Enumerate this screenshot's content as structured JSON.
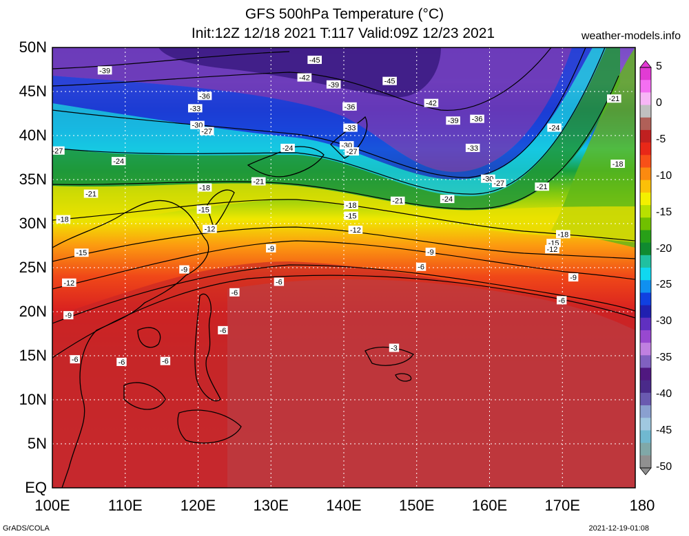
{
  "title_line1": "GFS 500hPa Temperature (°C)",
  "title_line2": "Init:12Z 12/18 2021 T:117 Valid:09Z 12/23 2021",
  "site": "weather-models.info",
  "footer_left": "GrADS/COLA",
  "footer_right": "2021-12-19-01:08",
  "lat_labels": [
    "50N",
    "45N",
    "40N",
    "35N",
    "30N",
    "25N",
    "20N",
    "15N",
    "10N",
    "5N",
    "EQ"
  ],
  "lon_labels": [
    "100E",
    "110E",
    "120E",
    "130E",
    "140E",
    "150E",
    "160E",
    "170E",
    "180"
  ],
  "colorbar_labels": [
    "5",
    "0",
    "-5",
    "-10",
    "-15",
    "-20",
    "-25",
    "-30",
    "-35",
    "-40",
    "-45",
    "-50"
  ],
  "colorbar_colors": [
    "#e23bd4",
    "#f46ff2",
    "#f7b6f6",
    "#c0c0c0",
    "#b06058",
    "#c02020",
    "#e82818",
    "#f85018",
    "#fc8a10",
    "#fcc008",
    "#f4f000",
    "#b8e000",
    "#70c000",
    "#28a018",
    "#108a30",
    "#20c0a0",
    "#10d8f0",
    "#1090f0",
    "#1040e0",
    "#2020b0",
    "#6030c0",
    "#9848d0",
    "#c080e0",
    "#8060c0",
    "#501880",
    "#4a2a8a",
    "#6a5ab0",
    "#8aa0d0",
    "#a0c8e0",
    "#70b8d0",
    "#80a8a8",
    "#909090"
  ],
  "contour_labels": [
    {
      "text": "-45",
      "lon": 136,
      "lat": 48.6
    },
    {
      "text": "-39",
      "lon": 107.2,
      "lat": 47.4
    },
    {
      "text": "-42",
      "lon": 134.6,
      "lat": 46.6
    },
    {
      "text": "-39",
      "lon": 138.6,
      "lat": 45.8
    },
    {
      "text": "-45",
      "lon": 146.3,
      "lat": 46.2
    },
    {
      "text": "-36",
      "lon": 120.9,
      "lat": 44.5
    },
    {
      "text": "-42",
      "lon": 152,
      "lat": 43.7
    },
    {
      "text": "-33",
      "lon": 119.6,
      "lat": 43.1
    },
    {
      "text": "-36",
      "lon": 140.8,
      "lat": 43.3
    },
    {
      "text": "-39",
      "lon": 155,
      "lat": 41.7
    },
    {
      "text": "-36",
      "lon": 158.3,
      "lat": 41.9
    },
    {
      "text": "-21",
      "lon": 177.1,
      "lat": 44.2
    },
    {
      "text": "-30",
      "lon": 119.9,
      "lat": 41.2
    },
    {
      "text": "-33",
      "lon": 140.9,
      "lat": 40.9
    },
    {
      "text": "-24",
      "lon": 168.9,
      "lat": 40.9
    },
    {
      "text": "-27",
      "lon": 121.2,
      "lat": 40.5
    },
    {
      "text": "-27",
      "lon": 100.7,
      "lat": 38.3
    },
    {
      "text": "-24",
      "lon": 132.3,
      "lat": 38.6
    },
    {
      "text": "-30",
      "lon": 140.4,
      "lat": 38.9
    },
    {
      "text": "-27",
      "lon": 141.1,
      "lat": 38.2
    },
    {
      "text": "-33",
      "lon": 157.7,
      "lat": 38.6
    },
    {
      "text": "-24",
      "lon": 109.1,
      "lat": 37.1
    },
    {
      "text": "-18",
      "lon": 177.6,
      "lat": 36.8
    },
    {
      "text": "-21",
      "lon": 128.3,
      "lat": 34.8
    },
    {
      "text": "-30",
      "lon": 159.8,
      "lat": 35.1
    },
    {
      "text": "-27",
      "lon": 161.3,
      "lat": 34.6
    },
    {
      "text": "-21",
      "lon": 167.2,
      "lat": 34.2
    },
    {
      "text": "-18",
      "lon": 120.9,
      "lat": 34.1
    },
    {
      "text": "-21",
      "lon": 105.3,
      "lat": 33.4
    },
    {
      "text": "-21",
      "lon": 147.4,
      "lat": 32.6
    },
    {
      "text": "-24",
      "lon": 154.2,
      "lat": 32.8
    },
    {
      "text": "-18",
      "lon": 141,
      "lat": 32.1
    },
    {
      "text": "-15",
      "lon": 120.8,
      "lat": 31.6
    },
    {
      "text": "-15",
      "lon": 141,
      "lat": 30.9
    },
    {
      "text": "-18",
      "lon": 101.5,
      "lat": 30.5
    },
    {
      "text": "-12",
      "lon": 121.6,
      "lat": 29.4
    },
    {
      "text": "-12",
      "lon": 141.6,
      "lat": 29.3
    },
    {
      "text": "-18",
      "lon": 170.1,
      "lat": 28.8
    },
    {
      "text": "-15",
      "lon": 168.8,
      "lat": 27.8
    },
    {
      "text": "-12",
      "lon": 168.6,
      "lat": 27.1
    },
    {
      "text": "-9",
      "lon": 130,
      "lat": 27.2
    },
    {
      "text": "-9",
      "lon": 151.9,
      "lat": 26.8
    },
    {
      "text": "-15",
      "lon": 104,
      "lat": 26.7
    },
    {
      "text": "-6",
      "lon": 150.6,
      "lat": 25.1
    },
    {
      "text": "-9",
      "lon": 118.1,
      "lat": 24.8
    },
    {
      "text": "-9",
      "lon": 171.5,
      "lat": 23.9
    },
    {
      "text": "-12",
      "lon": 102.3,
      "lat": 23.3
    },
    {
      "text": "-6",
      "lon": 131.1,
      "lat": 23.4
    },
    {
      "text": "-6",
      "lon": 125,
      "lat": 22.2
    },
    {
      "text": "-6",
      "lon": 169.9,
      "lat": 21.3
    },
    {
      "text": "-9",
      "lon": 102.2,
      "lat": 19.6
    },
    {
      "text": "-6",
      "lon": 123.4,
      "lat": 17.9
    },
    {
      "text": "-3",
      "lon": 146.9,
      "lat": 15.9
    },
    {
      "text": "-6",
      "lon": 103.1,
      "lat": 14.6
    },
    {
      "text": "-6",
      "lon": 109.5,
      "lat": 14.3
    },
    {
      "text": "-6",
      "lon": 115.5,
      "lat": 14.4
    }
  ]
}
